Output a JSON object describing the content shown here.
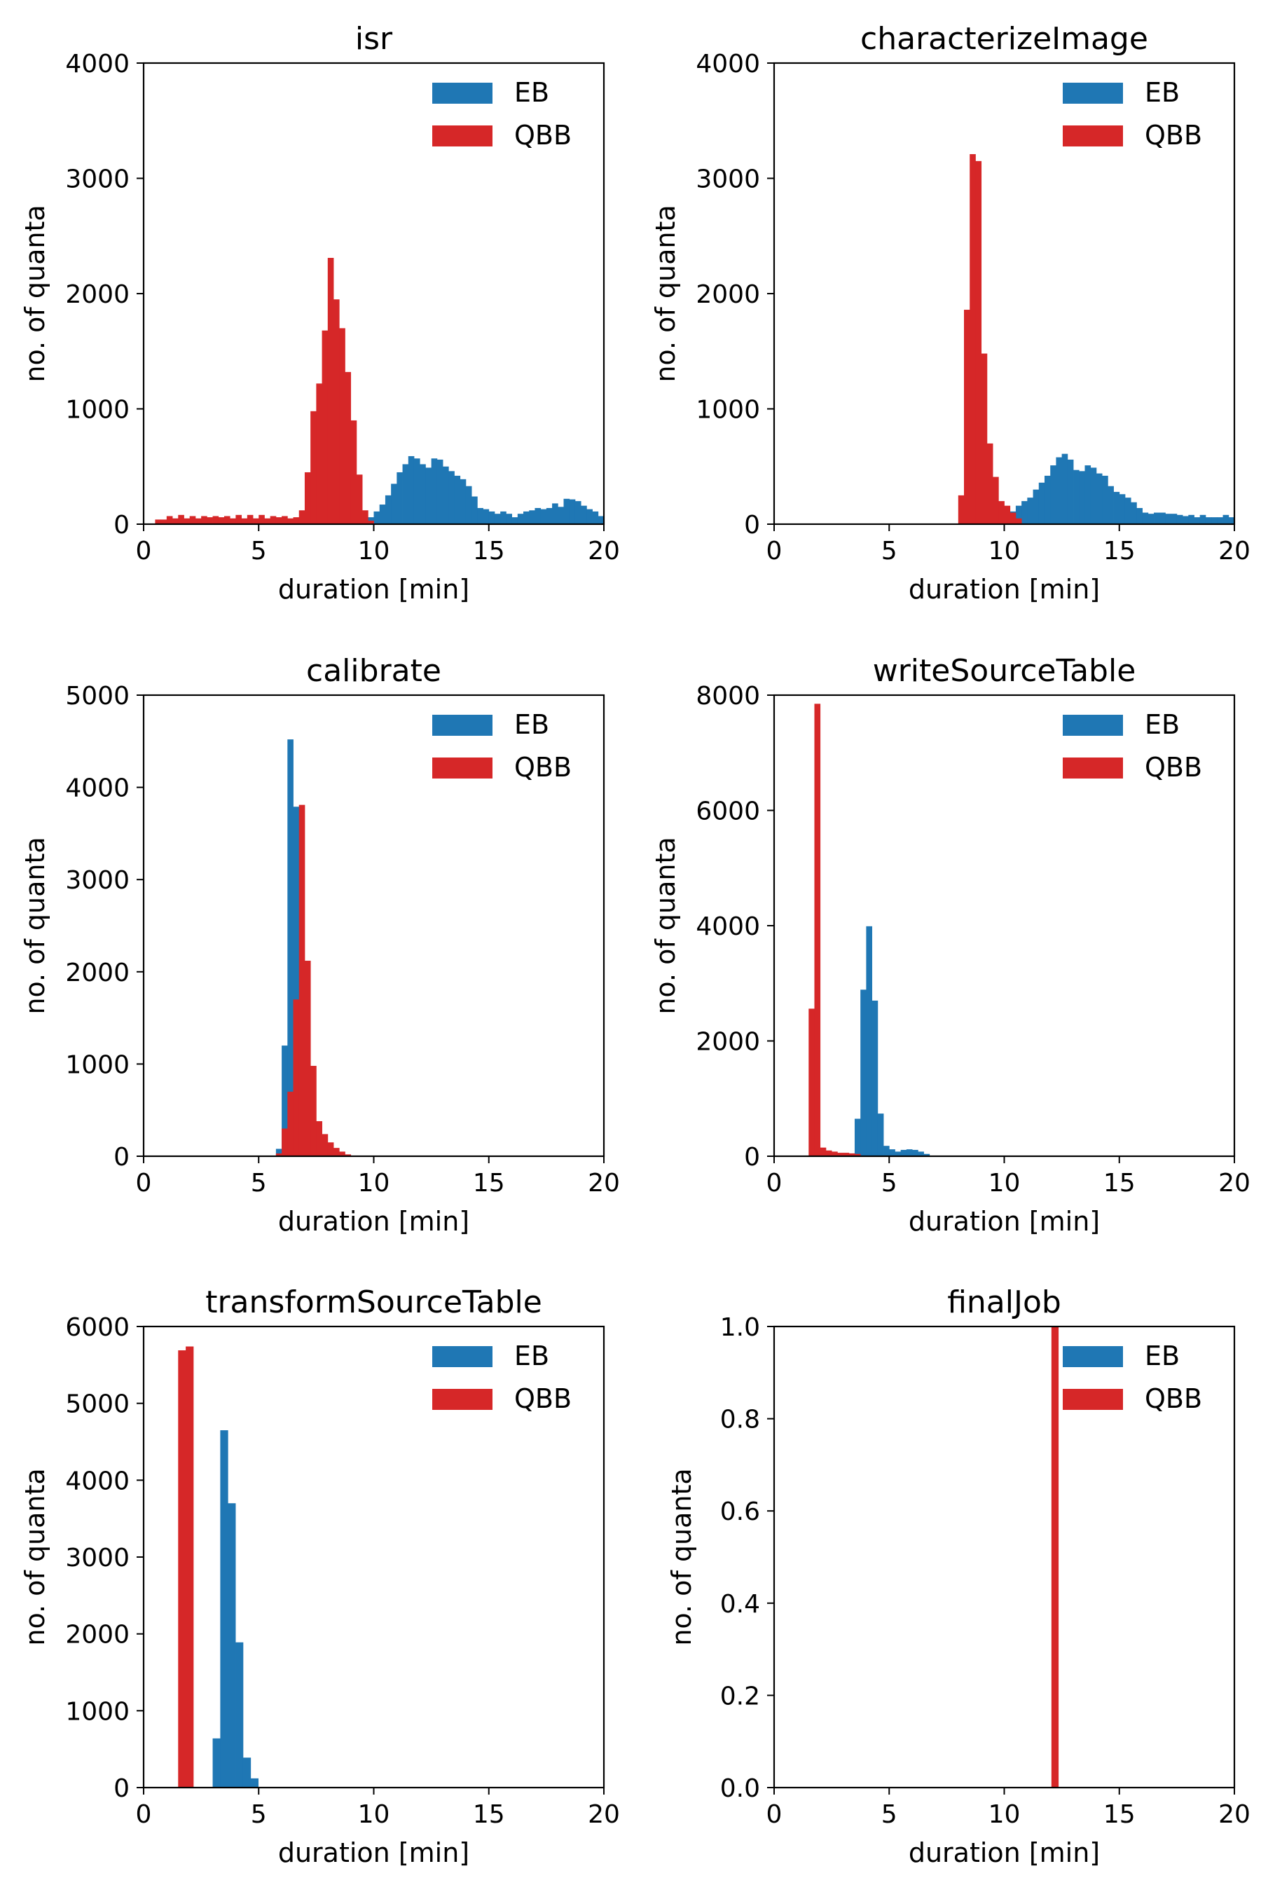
{
  "chart_data": [
    {
      "type": "bar",
      "title": "isr",
      "xlabel": "duration [min]",
      "ylabel": "no. of quanta",
      "xlim": [
        0,
        20
      ],
      "ylim": [
        0,
        4000
      ],
      "xticks": [
        0,
        5,
        10,
        15,
        20
      ],
      "yticks": [
        0,
        1000,
        2000,
        3000,
        4000
      ],
      "ytick_labels": [
        "0",
        "1000",
        "2000",
        "3000",
        "4000"
      ],
      "bin_width": 0.25,
      "legend_position": "upper-right",
      "series": [
        {
          "name": "EB",
          "color": "#1f77b4",
          "bins": [
            [
              9.5,
              30
            ],
            [
              9.75,
              60
            ],
            [
              10,
              110
            ],
            [
              10.25,
              170
            ],
            [
              10.5,
              250
            ],
            [
              10.75,
              350
            ],
            [
              11,
              450
            ],
            [
              11.25,
              520
            ],
            [
              11.5,
              590
            ],
            [
              11.75,
              570
            ],
            [
              12,
              520
            ],
            [
              12.25,
              490
            ],
            [
              12.5,
              570
            ],
            [
              12.75,
              560
            ],
            [
              13,
              500
            ],
            [
              13.25,
              460
            ],
            [
              13.5,
              420
            ],
            [
              13.75,
              390
            ],
            [
              14,
              330
            ],
            [
              14.25,
              240
            ],
            [
              14.5,
              140
            ],
            [
              14.75,
              130
            ],
            [
              15,
              110
            ],
            [
              15.25,
              90
            ],
            [
              15.5,
              110
            ],
            [
              15.75,
              90
            ],
            [
              16,
              60
            ],
            [
              16.25,
              90
            ],
            [
              16.5,
              110
            ],
            [
              16.75,
              120
            ],
            [
              17,
              140
            ],
            [
              17.25,
              130
            ],
            [
              17.5,
              140
            ],
            [
              17.75,
              180
            ],
            [
              18,
              150
            ],
            [
              18.25,
              220
            ],
            [
              18.5,
              215
            ],
            [
              18.75,
              200
            ],
            [
              19,
              160
            ],
            [
              19.25,
              130
            ],
            [
              19.5,
              110
            ],
            [
              19.75,
              70
            ]
          ]
        },
        {
          "name": "QBB",
          "color": "#d62728",
          "bins": [
            [
              0.5,
              40
            ],
            [
              0.75,
              40
            ],
            [
              1,
              70
            ],
            [
              1.25,
              50
            ],
            [
              1.5,
              80
            ],
            [
              1.75,
              50
            ],
            [
              2,
              70
            ],
            [
              2.25,
              50
            ],
            [
              2.5,
              70
            ],
            [
              2.75,
              60
            ],
            [
              3,
              70
            ],
            [
              3.25,
              60
            ],
            [
              3.5,
              70
            ],
            [
              3.75,
              50
            ],
            [
              4,
              80
            ],
            [
              4.25,
              50
            ],
            [
              4.5,
              80
            ],
            [
              4.75,
              50
            ],
            [
              5,
              80
            ],
            [
              5.25,
              50
            ],
            [
              5.5,
              70
            ],
            [
              5.75,
              60
            ],
            [
              6,
              70
            ],
            [
              6.25,
              50
            ],
            [
              6.5,
              60
            ],
            [
              6.75,
              120
            ],
            [
              7,
              450
            ],
            [
              7.25,
              980
            ],
            [
              7.5,
              1220
            ],
            [
              7.75,
              1680
            ],
            [
              8,
              2310
            ],
            [
              8.25,
              1950
            ],
            [
              8.5,
              1700
            ],
            [
              8.75,
              1320
            ],
            [
              9,
              900
            ],
            [
              9.25,
              430
            ],
            [
              9.5,
              120
            ],
            [
              9.75,
              30
            ]
          ]
        }
      ]
    },
    {
      "type": "bar",
      "title": "characterizeImage",
      "xlabel": "duration [min]",
      "ylabel": "no. of quanta",
      "xlim": [
        0,
        20
      ],
      "ylim": [
        0,
        4000
      ],
      "xticks": [
        0,
        5,
        10,
        15,
        20
      ],
      "yticks": [
        0,
        1000,
        2000,
        3000,
        4000
      ],
      "ytick_labels": [
        "0",
        "1000",
        "2000",
        "3000",
        "4000"
      ],
      "bin_width": 0.25,
      "legend_position": "upper-right",
      "series": [
        {
          "name": "EB",
          "color": "#1f77b4",
          "bins": [
            [
              9.75,
              30
            ],
            [
              10,
              60
            ],
            [
              10.25,
              110
            ],
            [
              10.5,
              160
            ],
            [
              10.75,
              200
            ],
            [
              11,
              230
            ],
            [
              11.25,
              300
            ],
            [
              11.5,
              360
            ],
            [
              11.75,
              420
            ],
            [
              12,
              510
            ],
            [
              12.25,
              580
            ],
            [
              12.5,
              610
            ],
            [
              12.75,
              560
            ],
            [
              13,
              470
            ],
            [
              13.25,
              460
            ],
            [
              13.5,
              510
            ],
            [
              13.75,
              490
            ],
            [
              14,
              440
            ],
            [
              14.25,
              420
            ],
            [
              14.5,
              330
            ],
            [
              14.75,
              280
            ],
            [
              15,
              260
            ],
            [
              15.25,
              230
            ],
            [
              15.5,
              190
            ],
            [
              15.75,
              140
            ],
            [
              16,
              100
            ],
            [
              16.25,
              90
            ],
            [
              16.5,
              100
            ],
            [
              16.75,
              100
            ],
            [
              17,
              90
            ],
            [
              17.25,
              90
            ],
            [
              17.5,
              80
            ],
            [
              17.75,
              70
            ],
            [
              18,
              80
            ],
            [
              18.25,
              60
            ],
            [
              18.5,
              80
            ],
            [
              18.75,
              60
            ],
            [
              19,
              60
            ],
            [
              19.25,
              60
            ],
            [
              19.5,
              80
            ],
            [
              19.75,
              60
            ]
          ]
        },
        {
          "name": "QBB",
          "color": "#d62728",
          "bins": [
            [
              8,
              250
            ],
            [
              8.25,
              1860
            ],
            [
              8.5,
              3210
            ],
            [
              8.75,
              3150
            ],
            [
              9,
              1480
            ],
            [
              9.25,
              700
            ],
            [
              9.5,
              410
            ],
            [
              9.75,
              200
            ],
            [
              10,
              160
            ],
            [
              10.25,
              100
            ],
            [
              10.5,
              50
            ]
          ]
        }
      ]
    },
    {
      "type": "bar",
      "title": "calibrate",
      "xlabel": "duration [min]",
      "ylabel": "no. of quanta",
      "xlim": [
        0,
        20
      ],
      "ylim": [
        0,
        5000
      ],
      "xticks": [
        0,
        5,
        10,
        15,
        20
      ],
      "yticks": [
        0,
        1000,
        2000,
        3000,
        4000,
        5000
      ],
      "ytick_labels": [
        "0",
        "1000",
        "2000",
        "3000",
        "4000",
        "5000"
      ],
      "bin_width": 0.25,
      "legend_position": "upper-right",
      "series": [
        {
          "name": "EB",
          "color": "#1f77b4",
          "bins": [
            [
              5.75,
              80
            ],
            [
              6,
              1200
            ],
            [
              6.25,
              4520
            ],
            [
              6.5,
              3790
            ],
            [
              6.75,
              1300
            ],
            [
              7,
              400
            ],
            [
              7.25,
              120
            ],
            [
              7.5,
              40
            ]
          ]
        },
        {
          "name": "QBB",
          "color": "#d62728",
          "bins": [
            [
              5.75,
              30
            ],
            [
              6,
              300
            ],
            [
              6.25,
              700
            ],
            [
              6.5,
              1700
            ],
            [
              6.75,
              3810
            ],
            [
              7,
              2120
            ],
            [
              7.25,
              980
            ],
            [
              7.5,
              380
            ],
            [
              7.75,
              240
            ],
            [
              8,
              150
            ],
            [
              8.25,
              90
            ],
            [
              8.5,
              50
            ],
            [
              8.75,
              20
            ]
          ]
        }
      ]
    },
    {
      "type": "bar",
      "title": "writeSourceTable",
      "xlabel": "duration [min]",
      "ylabel": "no. of quanta",
      "xlim": [
        0,
        20
      ],
      "ylim": [
        0,
        8000
      ],
      "xticks": [
        0,
        5,
        10,
        15,
        20
      ],
      "yticks": [
        0,
        2000,
        4000,
        6000,
        8000
      ],
      "ytick_labels": [
        "0",
        "2000",
        "4000",
        "6000",
        "8000"
      ],
      "bin_width": 0.25,
      "legend_position": "upper-right",
      "series": [
        {
          "name": "EB",
          "color": "#1f77b4",
          "bins": [
            [
              3.5,
              650
            ],
            [
              3.75,
              2890
            ],
            [
              4,
              3990
            ],
            [
              4.25,
              2700
            ],
            [
              4.5,
              740
            ],
            [
              4.75,
              180
            ],
            [
              5,
              120
            ],
            [
              5.25,
              80
            ],
            [
              5.5,
              110
            ],
            [
              5.75,
              120
            ],
            [
              6,
              110
            ],
            [
              6.25,
              80
            ],
            [
              6.5,
              40
            ]
          ]
        },
        {
          "name": "QBB",
          "color": "#d62728",
          "bins": [
            [
              1.5,
              2560
            ],
            [
              1.75,
              7850
            ],
            [
              2,
              150
            ],
            [
              2.25,
              100
            ],
            [
              2.5,
              80
            ],
            [
              2.75,
              60
            ],
            [
              3,
              60
            ],
            [
              3.25,
              50
            ],
            [
              3.5,
              40
            ]
          ]
        }
      ]
    },
    {
      "type": "bar",
      "title": "transformSourceTable",
      "xlabel": "duration [min]",
      "ylabel": "no. of quanta",
      "xlim": [
        0,
        20
      ],
      "ylim": [
        0,
        6000
      ],
      "xticks": [
        0,
        5,
        10,
        15,
        20
      ],
      "yticks": [
        0,
        1000,
        2000,
        3000,
        4000,
        5000,
        6000
      ],
      "ytick_labels": [
        "0",
        "1000",
        "2000",
        "3000",
        "4000",
        "5000",
        "6000"
      ],
      "bin_width": 0.33,
      "legend_position": "upper-right",
      "series": [
        {
          "name": "EB",
          "color": "#1f77b4",
          "bins": [
            [
              3,
              640
            ],
            [
              3.33,
              4650
            ],
            [
              3.66,
              3700
            ],
            [
              3.99,
              1890
            ],
            [
              4.32,
              390
            ],
            [
              4.65,
              120
            ]
          ]
        },
        {
          "name": "QBB",
          "color": "#d62728",
          "bins": [
            [
              1.5,
              5690
            ],
            [
              1.83,
              5740
            ]
          ]
        }
      ]
    },
    {
      "type": "bar",
      "title": "finalJob",
      "xlabel": "duration [min]",
      "ylabel": "no. of quanta",
      "xlim": [
        0,
        20
      ],
      "ylim": [
        0,
        1
      ],
      "xticks": [
        0,
        5,
        10,
        15,
        20
      ],
      "yticks": [
        0,
        0.2,
        0.4,
        0.6,
        0.8,
        1.0
      ],
      "ytick_labels": [
        "0.0",
        "0.2",
        "0.4",
        "0.6",
        "0.8",
        "1.0"
      ],
      "bin_width": 0.3,
      "legend_position": "upper-right",
      "series": [
        {
          "name": "EB",
          "color": "#1f77b4",
          "bins": []
        },
        {
          "name": "QBB",
          "color": "#d62728",
          "bins": [
            [
              12.05,
              1
            ]
          ]
        }
      ]
    }
  ]
}
